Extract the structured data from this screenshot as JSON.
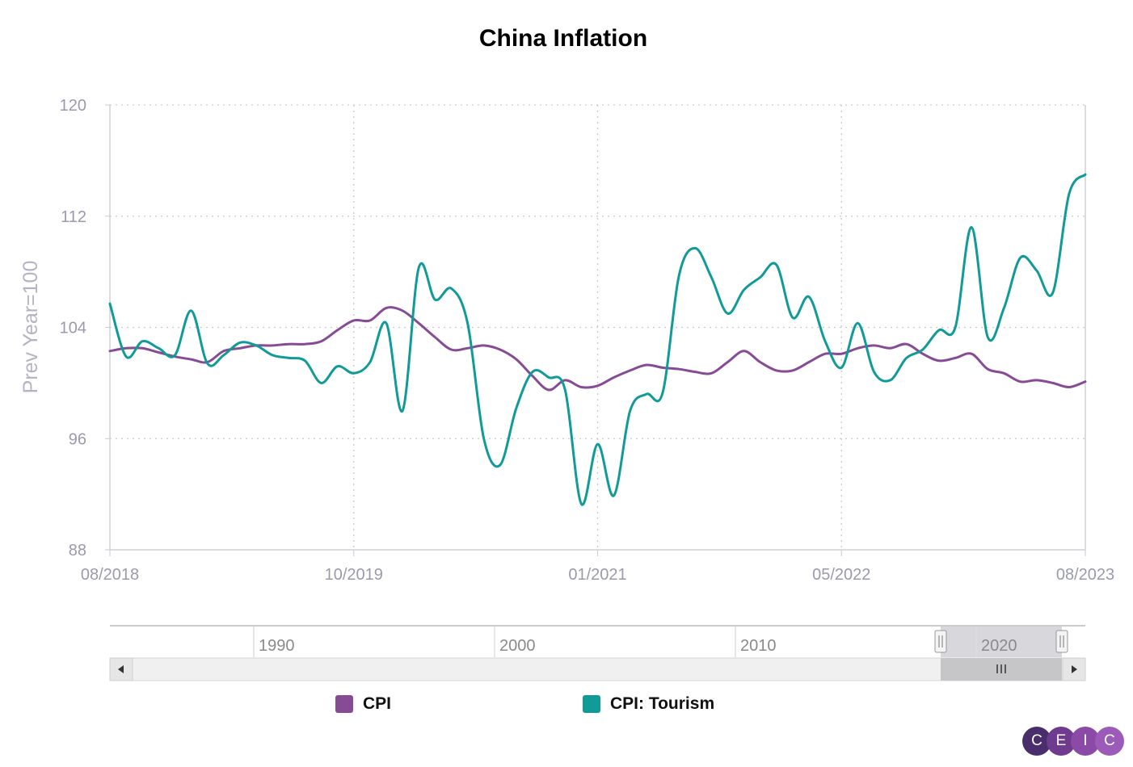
{
  "chart_data": {
    "type": "line",
    "title": "China Inflation",
    "ylabel": "Prev Year=100",
    "ylim": [
      88,
      120
    ],
    "y_ticks": [
      "88",
      "96",
      "104",
      "112",
      "120"
    ],
    "x_tick_labels": [
      "08/2018",
      "10/2019",
      "01/2021",
      "05/2022",
      "08/2023"
    ],
    "grid": true,
    "legend_position": "bottom",
    "x_start": "2018-08",
    "x_end": "2023-08",
    "series": [
      {
        "name": "CPI",
        "color": "#874b95",
        "x": [
          "2018-08",
          "2018-09",
          "2018-10",
          "2018-11",
          "2018-12",
          "2019-01",
          "2019-02",
          "2019-03",
          "2019-04",
          "2019-05",
          "2019-06",
          "2019-07",
          "2019-08",
          "2019-09",
          "2019-10",
          "2019-11",
          "2019-12",
          "2020-01",
          "2020-02",
          "2020-03",
          "2020-04",
          "2020-05",
          "2020-06",
          "2020-07",
          "2020-08",
          "2020-09",
          "2020-10",
          "2020-11",
          "2020-12",
          "2021-01",
          "2021-02",
          "2021-03",
          "2021-04",
          "2021-05",
          "2021-06",
          "2021-07",
          "2021-08",
          "2021-09",
          "2021-10",
          "2021-11",
          "2021-12",
          "2022-01",
          "2022-02",
          "2022-03",
          "2022-04",
          "2022-05",
          "2022-06",
          "2022-07",
          "2022-08",
          "2022-09",
          "2022-10",
          "2022-11",
          "2022-12",
          "2023-01",
          "2023-02",
          "2023-03",
          "2023-04",
          "2023-05",
          "2023-06",
          "2023-07",
          "2023-08"
        ],
        "values": [
          102.3,
          102.5,
          102.5,
          102.2,
          101.9,
          101.7,
          101.5,
          102.3,
          102.5,
          102.7,
          102.7,
          102.8,
          102.8,
          103.0,
          103.8,
          104.5,
          104.5,
          105.4,
          105.2,
          104.3,
          103.3,
          102.4,
          102.5,
          102.7,
          102.4,
          101.7,
          100.5,
          99.5,
          100.2,
          99.7,
          99.8,
          100.4,
          100.9,
          101.3,
          101.1,
          101.0,
          100.8,
          100.7,
          101.5,
          102.3,
          101.5,
          100.9,
          100.9,
          101.5,
          102.1,
          102.1,
          102.5,
          102.7,
          102.5,
          102.8,
          102.1,
          101.6,
          101.8,
          102.1,
          101.0,
          100.7,
          100.1,
          100.2,
          100.0,
          99.7,
          100.1
        ]
      },
      {
        "name": "CPI: Tourism",
        "color": "#109a98",
        "x": [
          "2018-08",
          "2018-09",
          "2018-10",
          "2018-11",
          "2018-12",
          "2019-01",
          "2019-02",
          "2019-03",
          "2019-04",
          "2019-05",
          "2019-06",
          "2019-07",
          "2019-08",
          "2019-09",
          "2019-10",
          "2019-11",
          "2019-12",
          "2020-01",
          "2020-02",
          "2020-03",
          "2020-04",
          "2020-05",
          "2020-06",
          "2020-07",
          "2020-08",
          "2020-09",
          "2020-10",
          "2020-11",
          "2020-12",
          "2021-01",
          "2021-02",
          "2021-03",
          "2021-04",
          "2021-05",
          "2021-06",
          "2021-07",
          "2021-08",
          "2021-09",
          "2021-10",
          "2021-11",
          "2021-12",
          "2022-01",
          "2022-02",
          "2022-03",
          "2022-04",
          "2022-05",
          "2022-06",
          "2022-07",
          "2022-08",
          "2022-09",
          "2022-10",
          "2022-11",
          "2022-12",
          "2023-01",
          "2023-02",
          "2023-03",
          "2023-04",
          "2023-05",
          "2023-06",
          "2023-07",
          "2023-08"
        ],
        "values": [
          105.7,
          101.9,
          103.0,
          102.5,
          102.0,
          105.2,
          101.4,
          102.0,
          102.9,
          102.7,
          102.0,
          101.8,
          101.6,
          100.0,
          101.2,
          100.7,
          101.5,
          104.3,
          98.0,
          108.3,
          106.0,
          106.8,
          104.3,
          96.0,
          94.1,
          98.2,
          100.8,
          100.4,
          99.5,
          91.3,
          95.6,
          91.9,
          98.0,
          99.2,
          99.3,
          107.7,
          109.7,
          107.6,
          105.0,
          106.7,
          107.6,
          108.5,
          104.7,
          106.2,
          103.0,
          101.1,
          104.3,
          100.8,
          100.2,
          101.8,
          102.4,
          103.8,
          104.0,
          111.2,
          103.3,
          105.4,
          109.0,
          108.1,
          106.5,
          113.6,
          115.0
        ]
      }
    ],
    "navigator": {
      "labels": [
        "1990",
        "2000",
        "2010",
        "2020"
      ]
    }
  },
  "legend": [
    {
      "label": "CPI",
      "color": "#874b95"
    },
    {
      "label": "CPI: Tourism",
      "color": "#109a98"
    }
  ],
  "logo": {
    "letters": [
      "C",
      "E",
      "I",
      "C"
    ]
  }
}
